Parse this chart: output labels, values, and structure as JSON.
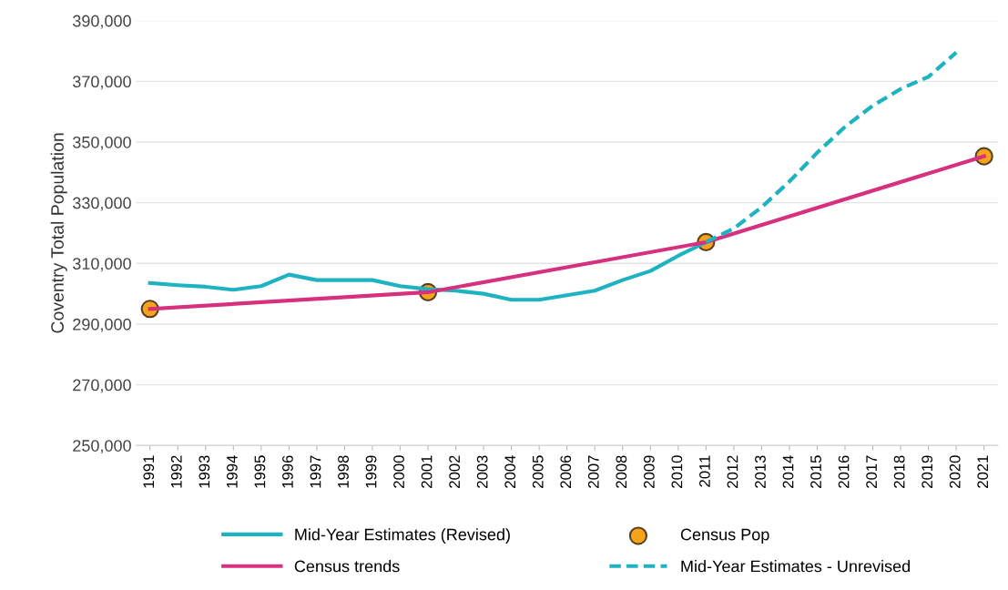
{
  "chart_data": {
    "type": "line",
    "ylabel": "Coventry Total Population",
    "xlim": [
      1990.5,
      2021.5
    ],
    "xticks": [
      1991,
      1992,
      1993,
      1994,
      1995,
      1996,
      1997,
      1998,
      1999,
      2000,
      2001,
      2002,
      2003,
      2004,
      2005,
      2006,
      2007,
      2008,
      2009,
      2010,
      2011,
      2012,
      2013,
      2014,
      2015,
      2016,
      2017,
      2018,
      2019,
      2020,
      2021
    ],
    "ylim": [
      250000,
      390000
    ],
    "yticks": [
      {
        "value": 250000,
        "label": "250,000"
      },
      {
        "value": 270000,
        "label": "270,000"
      },
      {
        "value": 290000,
        "label": "290,000"
      },
      {
        "value": 310000,
        "label": "310,000"
      },
      {
        "value": 330000,
        "label": "330,000"
      },
      {
        "value": 350000,
        "label": "350,000"
      },
      {
        "value": 370000,
        "label": "370,000"
      },
      {
        "value": 390000,
        "label": "390,000"
      }
    ],
    "grid": "y",
    "legend": "bottom",
    "series": [
      {
        "name": "Mid-Year Estimates (Revised)",
        "color": "#1fb3c2",
        "line_style": "solid",
        "x": [
          1991,
          1992,
          1993,
          1994,
          1995,
          1996,
          1997,
          1998,
          1999,
          2000,
          2001,
          2002,
          2003,
          2004,
          2005,
          2006,
          2007,
          2008,
          2009,
          2010,
          2011
        ],
        "values": [
          303500,
          302800,
          302300,
          301300,
          302500,
          306300,
          304500,
          304500,
          304500,
          302500,
          301500,
          301000,
          300000,
          298000,
          298000,
          299500,
          301000,
          304500,
          307500,
          312500,
          317000
        ]
      },
      {
        "name": "Census Pop",
        "type": "scatter",
        "color": "#f5a31a",
        "marker": "circle",
        "x": [
          1991,
          2001,
          2011,
          2021
        ],
        "values": [
          295000,
          300500,
          317000,
          345300
        ]
      },
      {
        "name": "Census trends",
        "color": "#d6307f",
        "line_style": "solid",
        "x": [
          1991,
          2001,
          2011,
          2021
        ],
        "values": [
          295000,
          300500,
          317000,
          345300
        ]
      },
      {
        "name": "Mid-Year Estimates - Unrevised",
        "color": "#1fb3c2",
        "line_style": "dashed",
        "x": [
          2011,
          2012,
          2013,
          2014,
          2015,
          2016,
          2017,
          2018,
          2019,
          2020
        ],
        "values": [
          317000,
          321500,
          328500,
          337000,
          346500,
          355000,
          362000,
          367500,
          371500,
          379500
        ]
      }
    ]
  }
}
